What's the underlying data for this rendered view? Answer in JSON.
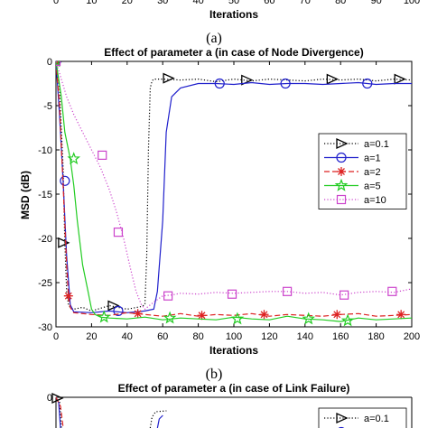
{
  "chart_data": [
    {
      "type": "line",
      "title": "",
      "xlabel": "Iterations",
      "ylabel": "",
      "xlim": [
        0,
        100
      ],
      "xticks": [
        "0",
        "10",
        "20",
        "30",
        "40",
        "50",
        "60",
        "70",
        "80",
        "90",
        "100"
      ],
      "caption": "(a)",
      "series": []
    },
    {
      "type": "line",
      "title": "Effect of parameter a (in case of Node Divergence)",
      "xlabel": "Iterations",
      "ylabel": "MSD (dB)",
      "xlim": [
        0,
        200
      ],
      "ylim": [
        -30,
        0
      ],
      "xticks": [
        "0",
        "20",
        "40",
        "60",
        "80",
        "100",
        "120",
        "140",
        "160",
        "180",
        "200"
      ],
      "yticks": [
        "0",
        "-5",
        "-10",
        "-15",
        "-20",
        "-25",
        "-30"
      ],
      "grid": false,
      "legend": "right",
      "caption": "(b)",
      "series": [
        {
          "name": "a=0.1",
          "color": "#000000",
          "dash": "dotted",
          "marker": "triangle-right",
          "x": [
            0,
            2,
            4,
            5,
            6,
            7,
            8,
            10,
            15,
            20,
            30,
            40,
            48,
            50,
            51,
            52,
            53,
            54,
            55,
            60,
            70,
            80,
            90,
            100,
            110,
            120,
            130,
            140,
            150,
            160,
            170,
            180,
            190,
            200
          ],
          "y": [
            0,
            -3,
            -12,
            -20.5,
            -26,
            -27.5,
            -27.8,
            -28,
            -27.8,
            -28.2,
            -27.6,
            -28,
            -27.7,
            -27.5,
            -22,
            -10,
            -3,
            -2.2,
            -2,
            -2,
            -2.1,
            -2,
            -2.3,
            -2,
            -2.2,
            -2,
            -2.1,
            -2.2,
            -2,
            -2.1,
            -2,
            -2.2,
            -2,
            -2.1
          ],
          "markers_x": [
            0,
            4,
            32,
            63,
            107,
            155,
            193
          ],
          "markers_y": [
            0,
            -20.5,
            -27.6,
            -1.9,
            -2.1,
            -2.0,
            -2.0
          ]
        },
        {
          "name": "a=1",
          "color": "#2020cc",
          "dash": "solid",
          "marker": "circle",
          "x": [
            0,
            2,
            4,
            6,
            8,
            10,
            20,
            30,
            40,
            50,
            55,
            57,
            60,
            62,
            65,
            70,
            80,
            90,
            100,
            110,
            120,
            130,
            140,
            150,
            160,
            170,
            180,
            190,
            200
          ],
          "y": [
            0,
            -6,
            -13.5,
            -22,
            -27.5,
            -28.3,
            -28.4,
            -28.2,
            -28.4,
            -28.2,
            -28,
            -26,
            -18,
            -8,
            -4,
            -3,
            -2.5,
            -2.5,
            -2.6,
            -2.4,
            -2.6,
            -2.5,
            -2.5,
            -2.6,
            -2.5,
            -2.4,
            -2.6,
            -2.5,
            -2.5
          ],
          "markers_x": [
            0,
            5,
            35,
            92,
            129,
            175
          ],
          "markers_y": [
            0,
            -13.5,
            -28.2,
            -2.5,
            -2.5,
            -2.5
          ]
        },
        {
          "name": "a=2",
          "color": "#dd2222",
          "dash": "dashed",
          "marker": "asterisk",
          "x": [
            0,
            2,
            4,
            6,
            7,
            8,
            10,
            20,
            30,
            40,
            50,
            60,
            70,
            80,
            90,
            100,
            110,
            120,
            130,
            140,
            150,
            160,
            170,
            180,
            190,
            200
          ],
          "y": [
            0,
            -5,
            -14,
            -23,
            -26.5,
            -27.8,
            -28.4,
            -28.6,
            -28.7,
            -28.4,
            -28.6,
            -28.8,
            -28.5,
            -28.8,
            -28.6,
            -28.7,
            -28.5,
            -28.8,
            -28.6,
            -28.7,
            -28.8,
            -28.6,
            -28.5,
            -28.8,
            -28.7,
            -28.6
          ],
          "markers_x": [
            0,
            7,
            46,
            82,
            117,
            158,
            194
          ],
          "markers_y": [
            0,
            -26.5,
            -28.5,
            -28.7,
            -28.6,
            -28.6,
            -28.6
          ]
        },
        {
          "name": "a=5",
          "color": "#22cc22",
          "dash": "solid",
          "marker": "star",
          "x": [
            0,
            3,
            5,
            8,
            10,
            12,
            15,
            18,
            20,
            22,
            25,
            30,
            40,
            50,
            60,
            70,
            80,
            90,
            100,
            110,
            120,
            130,
            140,
            150,
            160,
            170,
            180,
            190,
            200
          ],
          "y": [
            0,
            -4,
            -8,
            -11,
            -14,
            -18,
            -23,
            -26,
            -28,
            -28.6,
            -28.9,
            -29,
            -29.1,
            -28.9,
            -29.2,
            -29,
            -29.1,
            -29.2,
            -28.9,
            -29.1,
            -29.2,
            -28.8,
            -29.1,
            -29.2,
            -29.4,
            -29,
            -29.2,
            -29.1,
            -29
          ],
          "markers_x": [
            0,
            10,
            27,
            64,
            102,
            142,
            164
          ],
          "markers_y": [
            0,
            -11,
            -28.9,
            -29.0,
            -29.1,
            -29.1,
            -29.3
          ]
        },
        {
          "name": "a=10",
          "color": "#cc44cc",
          "dash": "dotted",
          "marker": "square",
          "x": [
            0,
            3,
            6,
            10,
            15,
            20,
            25,
            30,
            34,
            38,
            42,
            45,
            48,
            50,
            55,
            60,
            65,
            70,
            80,
            90,
            100,
            110,
            120,
            130,
            140,
            150,
            160,
            170,
            180,
            190,
            200
          ],
          "y": [
            0,
            -2,
            -4,
            -6,
            -8,
            -10,
            -12,
            -14.5,
            -17,
            -20,
            -23.5,
            -26,
            -27.5,
            -28,
            -27.2,
            -26.5,
            -26.4,
            -26.2,
            -26.3,
            -26.1,
            -26.2,
            -26.1,
            -26.0,
            -26.0,
            -26.2,
            -26.1,
            -26.4,
            -26.1,
            -26.0,
            -26.1,
            -25.7
          ],
          "markers_x": [
            0,
            26,
            35,
            63,
            99,
            130,
            162,
            189
          ],
          "markers_y": [
            0,
            -10.6,
            -19.3,
            -26.5,
            -26.3,
            -26.0,
            -26.4,
            -26.0
          ]
        }
      ]
    },
    {
      "type": "line",
      "title": "Effect of parameter a (in case of Link Failure)",
      "xlabel": "",
      "ylabel": "",
      "legend": "top-right",
      "series": [
        {
          "name": "a=0.1",
          "color": "#000000",
          "dash": "dotted",
          "marker": "triangle-right"
        },
        {
          "name": "a=1",
          "color": "#2020cc",
          "dash": "solid",
          "marker": "circle"
        }
      ]
    }
  ]
}
